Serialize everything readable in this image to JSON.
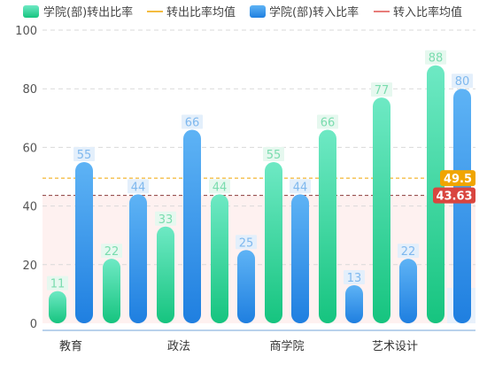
{
  "chart_data": {
    "type": "bar",
    "title": "",
    "xlabel": "",
    "ylabel": "",
    "ylim": [
      0,
      100
    ],
    "yticks": [
      0,
      20,
      40,
      60,
      80,
      100
    ],
    "grid": true,
    "legend_position": "top",
    "categories": [
      "教育",
      "",
      "政法",
      "",
      "商学院",
      "",
      "艺术设计",
      ""
    ],
    "series": [
      {
        "name": "学院(部)转出比率",
        "values": [
          11,
          22,
          33,
          44,
          55,
          66,
          77,
          88
        ],
        "color_top": "#6ee9c4",
        "color_bottom": "#16c47f"
      },
      {
        "name": "学院(部)转入比率",
        "values": [
          55,
          44,
          66,
          25,
          44,
          13,
          22,
          80
        ],
        "color_top": "#5eb3f5",
        "color_bottom": "#1f7fe0"
      }
    ],
    "reference_lines": [
      {
        "name": "转出比率均值",
        "value": 49.5,
        "label": "49.5",
        "color": "#f0a500"
      },
      {
        "name": "转入比率均值",
        "value": 43.63,
        "label": "43.63",
        "color": "#e0524f"
      }
    ]
  }
}
